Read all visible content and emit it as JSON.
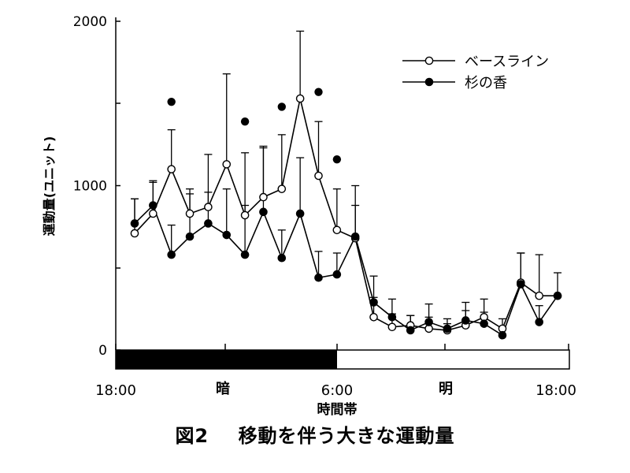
{
  "caption": {
    "figure_no": "図2",
    "title": "移動を伴う大きな運動量"
  },
  "chart_data": {
    "type": "line",
    "title": "",
    "ylabel": "運動量(ユニット)",
    "xlabel": "時間帯",
    "ylim": [
      0,
      2000
    ],
    "yticks": [
      0,
      1000,
      2000
    ],
    "x_tick_labels": [
      "18:00",
      "6:00",
      "18:00"
    ],
    "period_labels": {
      "dark": "暗",
      "light": "明"
    },
    "legend": {
      "placement": "top-right"
    },
    "x": [
      0,
      1,
      2,
      3,
      4,
      5,
      6,
      7,
      8,
      9,
      10,
      11,
      12,
      13,
      14,
      15,
      16,
      17,
      18,
      19,
      20,
      21,
      22,
      23
    ],
    "series": [
      {
        "name": "ベースライン",
        "marker": "open-circle",
        "color": "#000000",
        "values": [
          710,
          830,
          1100,
          830,
          870,
          1130,
          820,
          930,
          980,
          1530,
          1060,
          730,
          680,
          200,
          140,
          150,
          130,
          120,
          150,
          200,
          130,
          410,
          330,
          330
        ],
        "error": [
          210,
          190,
          240,
          150,
          320,
          550,
          380,
          300,
          330,
          410,
          330,
          250,
          320,
          120,
          80,
          60,
          70,
          40,
          90,
          110,
          60,
          180,
          250,
          0
        ]
      },
      {
        "name": "杉の香",
        "marker": "filled-circle",
        "color": "#000000",
        "values": [
          770,
          880,
          580,
          690,
          770,
          700,
          580,
          840,
          560,
          830,
          440,
          460,
          690,
          290,
          200,
          120,
          170,
          130,
          180,
          160,
          90,
          400,
          170,
          330
        ],
        "error": [
          150,
          150,
          180,
          260,
          190,
          280,
          300,
          400,
          170,
          340,
          160,
          130,
          190,
          160,
          110,
          90,
          110,
          60,
          110,
          70,
          40,
          190,
          100,
          140
        ]
      }
    ],
    "significance_markers": [
      {
        "x": 2,
        "y": 1510
      },
      {
        "x": 6,
        "y": 1390
      },
      {
        "x": 8,
        "y": 1480
      },
      {
        "x": 10,
        "y": 1570
      },
      {
        "x": 11,
        "y": 1160
      }
    ]
  }
}
